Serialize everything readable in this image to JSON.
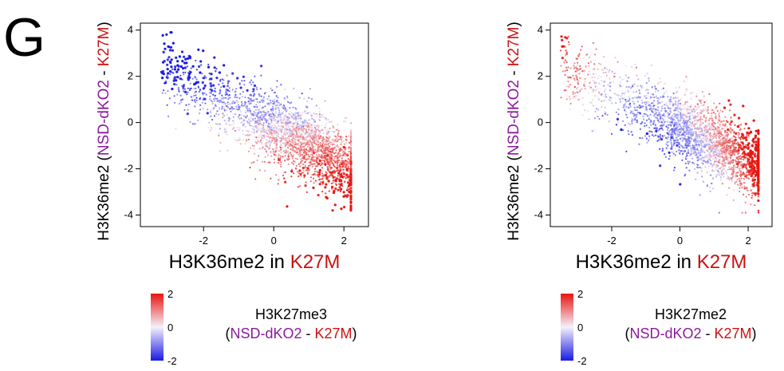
{
  "figure": {
    "panel_letter": "G",
    "colors": {
      "low": "#1a1ae6",
      "mid": "#f4f1fb",
      "high": "#e8150f",
      "purple": "#8b1a9e",
      "red": "#cc1111"
    }
  },
  "chart_data": [
    {
      "type": "scatter",
      "title": "",
      "xlabel_parts": [
        {
          "text": "H3K36me2 in ",
          "color": "#000000"
        },
        {
          "text": "K27M",
          "color": "#cc1111"
        }
      ],
      "ylabel_parts": [
        {
          "text": "H3K36me2 (",
          "color": "#000000"
        },
        {
          "text": "NSD-dKO2",
          "color": "#8b1a9e"
        },
        {
          "text": " - ",
          "color": "#000000"
        },
        {
          "text": "K27M",
          "color": "#cc1111"
        },
        {
          "text": ")",
          "color": "#000000"
        }
      ],
      "xlim": [
        -3.8,
        2.7
      ],
      "ylim": [
        -4.5,
        4.3
      ],
      "xticks": [
        -2,
        0,
        2
      ],
      "yticks": [
        -4,
        -2,
        0,
        2,
        4
      ],
      "grid": false,
      "x_range": [
        -3.2,
        2.2
      ],
      "y_range": [
        -3.8,
        3.9
      ],
      "trend": {
        "intercept": -0.2,
        "slope": -0.75
      },
      "color_variable": "H3K27me3 (NSD-dKO2 - K27M)",
      "color_pattern": "negative (blue) toward upper-left, positive (red) toward lower-right",
      "colorbar": {
        "ticks": [
          2,
          0,
          -2
        ],
        "range": [
          -2,
          2
        ],
        "title_line1": "H3K27me3",
        "title_line2_parts": [
          {
            "text": "(",
            "color": "#000000"
          },
          {
            "text": "NSD-dKO2",
            "color": "#8b1a9e"
          },
          {
            "text": " - ",
            "color": "#000000"
          },
          {
            "text": "K27M",
            "color": "#cc1111"
          },
          {
            "text": ")",
            "color": "#000000"
          }
        ]
      }
    },
    {
      "type": "scatter",
      "title": "",
      "xlabel_parts": [
        {
          "text": "H3K36me2 in ",
          "color": "#000000"
        },
        {
          "text": "K27M",
          "color": "#cc1111"
        }
      ],
      "ylabel_parts": [
        {
          "text": "H3K36me2 (",
          "color": "#000000"
        },
        {
          "text": "NSD-dKO2",
          "color": "#8b1a9e"
        },
        {
          "text": " - ",
          "color": "#000000"
        },
        {
          "text": "K27M",
          "color": "#cc1111"
        },
        {
          "text": ")",
          "color": "#000000"
        }
      ],
      "xlim": [
        -3.8,
        2.7
      ],
      "ylim": [
        -4.5,
        4.3
      ],
      "xticks": [
        -2,
        0,
        2
      ],
      "yticks": [
        -4,
        -2,
        0,
        2,
        4
      ],
      "grid": false,
      "x_range": [
        -3.5,
        2.3
      ],
      "y_range": [
        -3.9,
        3.9
      ],
      "trend": {
        "intercept": -0.2,
        "slope": -0.75
      },
      "color_variable": "H3K27me2 (NSD-dKO2 - K27M)",
      "color_pattern": "negative (blue) in center-left band, positive (red) at upper-left and lower-right",
      "colorbar": {
        "ticks": [
          2,
          0,
          -2
        ],
        "range": [
          -2,
          2
        ],
        "title_line1": "H3K27me2",
        "title_line2_parts": [
          {
            "text": "(",
            "color": "#000000"
          },
          {
            "text": "NSD-dKO2",
            "color": "#8b1a9e"
          },
          {
            "text": " - ",
            "color": "#000000"
          },
          {
            "text": "K27M",
            "color": "#cc1111"
          },
          {
            "text": ")",
            "color": "#000000"
          }
        ]
      }
    }
  ]
}
